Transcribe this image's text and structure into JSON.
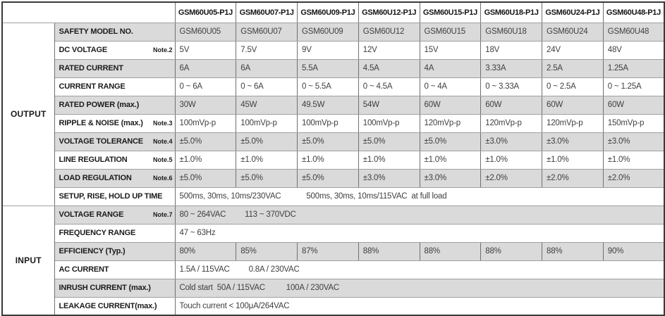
{
  "table": {
    "corner": "",
    "models": [
      "GSM60U05-P1J",
      "GSM60U07-P1J",
      "GSM60U09-P1J",
      "GSM60U12-P1J",
      "GSM60U15-P1J",
      "GSM60U18-P1J",
      "GSM60U24-P1J",
      "GSM60U48-P1J"
    ],
    "sections": [
      {
        "name": "OUTPUT",
        "rows": [
          {
            "label": "SAFETY MODEL NO.",
            "note": "",
            "cells": [
              "GSM60U05",
              "GSM60U07",
              "GSM60U09",
              "GSM60U12",
              "GSM60U15",
              "GSM60U18",
              "GSM60U24",
              "GSM60U48"
            ]
          },
          {
            "label": "DC VOLTAGE",
            "note": "Note.2",
            "cells": [
              "5V",
              "7.5V",
              "9V",
              "12V",
              "15V",
              "18V",
              "24V",
              "48V"
            ]
          },
          {
            "label": "RATED CURRENT",
            "note": "",
            "cells": [
              "6A",
              "6A",
              "5.5A",
              "4.5A",
              "4A",
              "3.33A",
              "2.5A",
              "1.25A"
            ]
          },
          {
            "label": "CURRENT RANGE",
            "note": "",
            "cells": [
              "0 ~ 6A",
              "0 ~ 6A",
              "0 ~ 5.5A",
              "0 ~ 4.5A",
              "0 ~ 4A",
              "0 ~ 3.33A",
              "0 ~ 2.5A",
              "0 ~ 1.25A"
            ]
          },
          {
            "label": "RATED POWER (max.)",
            "note": "",
            "cells": [
              "30W",
              "45W",
              "49.5W",
              "54W",
              "60W",
              "60W",
              "60W",
              "60W"
            ]
          },
          {
            "label": "RIPPLE & NOISE (max.)",
            "note": "Note.3",
            "cells": [
              "100mVp-p",
              "100mVp-p",
              "100mVp-p",
              "100mVp-p",
              "120mVp-p",
              "120mVp-p",
              "120mVp-p",
              "150mVp-p"
            ]
          },
          {
            "label": "VOLTAGE TOLERANCE",
            "note": "Note.4",
            "cells": [
              "±5.0%",
              "±5.0%",
              "±5.0%",
              "±5.0%",
              "±5.0%",
              "±3.0%",
              "±3.0%",
              "±3.0%"
            ]
          },
          {
            "label": "LINE REGULATION",
            "note": "Note.5",
            "cells": [
              "±1.0%",
              "±1.0%",
              "±1.0%",
              "±1.0%",
              "±1.0%",
              "±1.0%",
              "±1.0%",
              "±1.0%"
            ]
          },
          {
            "label": "LOAD REGULATION",
            "note": "Note.6",
            "cells": [
              "±5.0%",
              "±5.0%",
              "±5.0%",
              "±3.0%",
              "±3.0%",
              "±2.0%",
              "±2.0%",
              "±2.0%"
            ]
          },
          {
            "label": "SETUP, RISE, HOLD UP TIME",
            "note": "",
            "merged": "500ms, 30ms, 10ms/230VAC            500ms, 30ms, 10ms/115VAC  at full load"
          }
        ]
      },
      {
        "name": "INPUT",
        "rows": [
          {
            "label": "VOLTAGE RANGE",
            "note": "Note.7",
            "merged": "80 ~ 264VAC         113 ~ 370VDC"
          },
          {
            "label": "FREQUENCY RANGE",
            "note": "",
            "merged": "47 ~ 63Hz"
          },
          {
            "label": "EFFICIENCY (Typ.)",
            "note": "",
            "cells": [
              "80%",
              "85%",
              "87%",
              "88%",
              "88%",
              "88%",
              "88%",
              "90%"
            ]
          },
          {
            "label": "AC CURRENT",
            "note": "",
            "merged": "1.5A / 115VAC         0.8A / 230VAC"
          },
          {
            "label": "INRUSH CURRENT (max.)",
            "note": "",
            "merged": "Cold start  50A / 115VAC          100A / 230VAC"
          },
          {
            "label": "LEAKAGE CURRENT(max.)",
            "note": "",
            "merged": "Touch current < 100μA/264VAC"
          }
        ]
      }
    ],
    "colors": {
      "zebra_gray": "#dadada",
      "outer_border": "#3a3a3a",
      "label_text": "#1b1b1b",
      "value_text": "#3f3f3f"
    }
  }
}
